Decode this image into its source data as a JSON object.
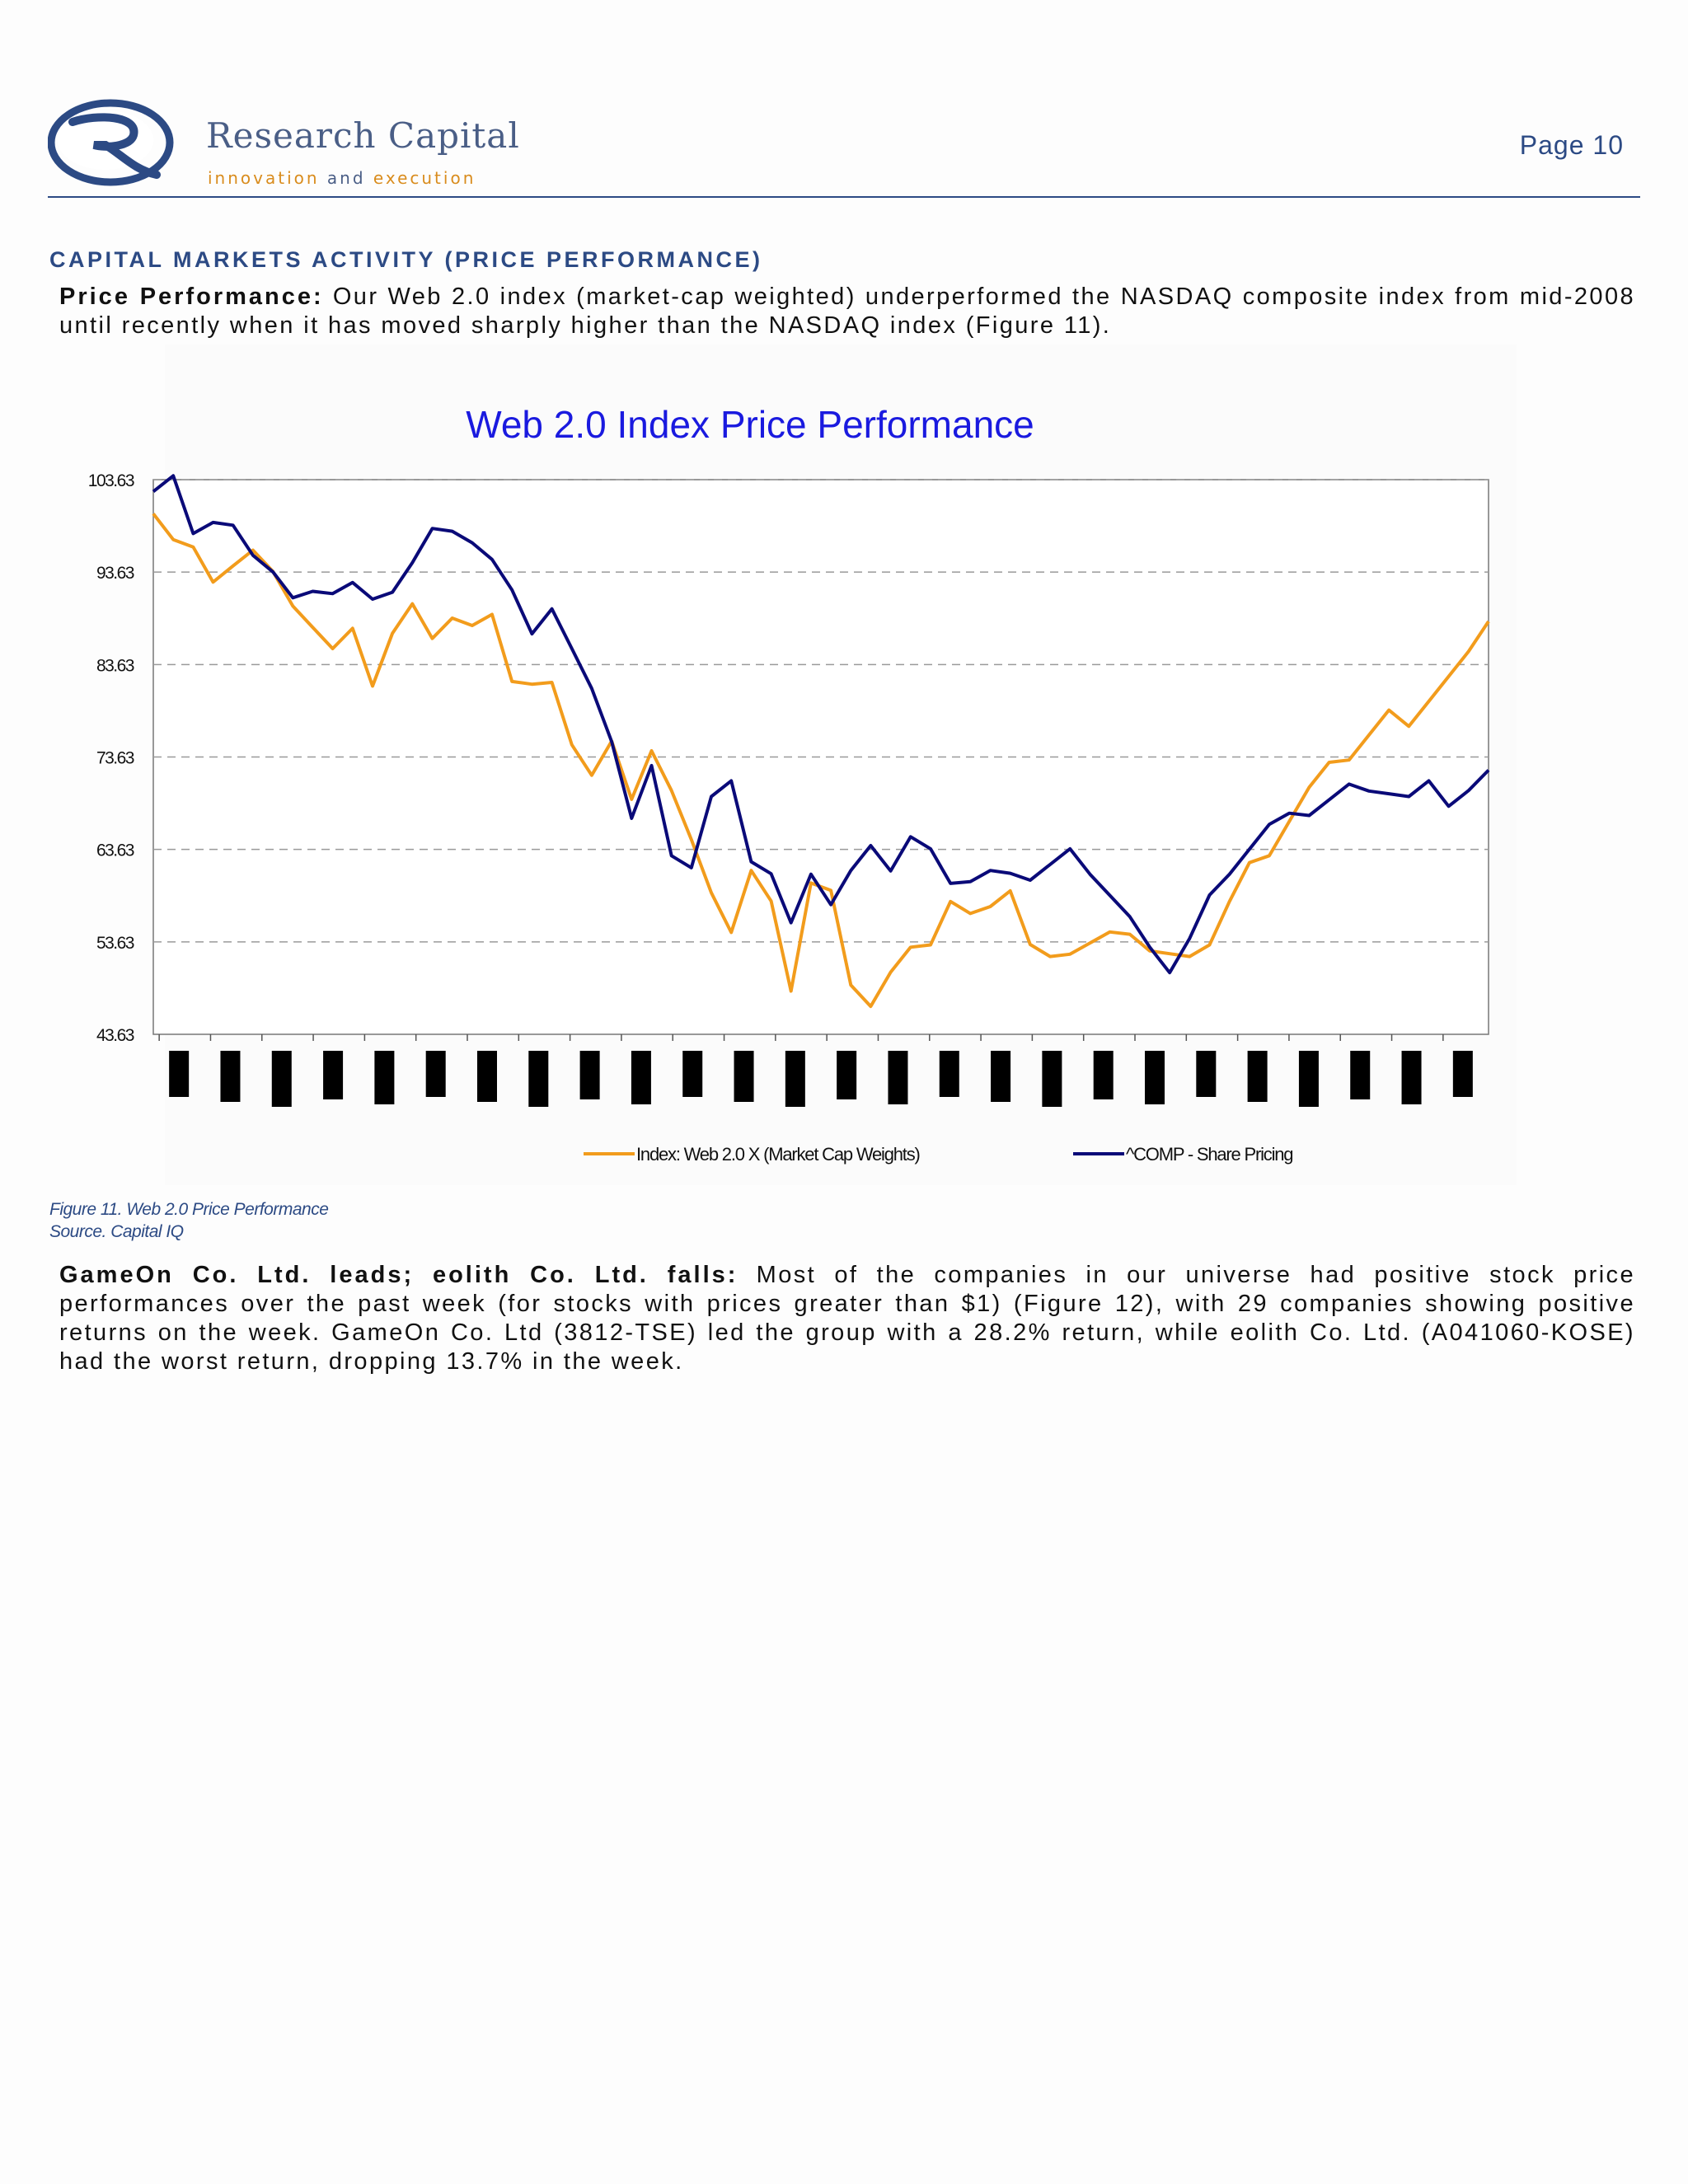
{
  "header": {
    "brand": "Research Capital",
    "tagline_a": "innovation ",
    "tagline_and": "and",
    "tagline_b": " execution",
    "page_label": "Page 10",
    "brand_color": "#4a5e86",
    "accent_color": "#d98c1d"
  },
  "section": {
    "title": "CAPITAL MARKETS ACTIVITY (PRICE PERFORMANCE)"
  },
  "para1": {
    "lead": "Price Performance:",
    "text": " Our Web 2.0 index (market-cap weighted) underperformed the NASDAQ composite index from mid-2008 until recently when it has moved sharply higher than the NASDAQ index (Figure 11)."
  },
  "figure": {
    "caption": "Figure 11. Web 2.0 Price Performance",
    "source": "Source. Capital IQ"
  },
  "para2": {
    "lead": "GameOn Co. Ltd. leads; eolith Co. Ltd. falls:",
    "text": " Most of the companies in our universe had positive stock price performances over the past week (for stocks with prices greater than $1) (Figure 12), with 29 companies showing positive returns on the week. GameOn Co. Ltd (3812-TSE) led the group with a 28.2% return, while eolith Co. Ltd. (A041060-KOSE) had the worst return, dropping 13.7% in the week."
  },
  "chart_data": {
    "type": "line",
    "title": "Web 2.0 Index Price Performance",
    "xlabel": "",
    "ylabel": "",
    "ylim": [
      43.63,
      103.63
    ],
    "y_ticks": [
      "103.63",
      "93.63",
      "83.63",
      "73.63",
      "63.63",
      "53.63",
      "43.63"
    ],
    "x_tick_labels": "redacted (26 black marks)",
    "x_tick_count": 26,
    "grid": "horizontal dashed",
    "legend_position": "bottom",
    "series": [
      {
        "name": "Index: Web 2.0 X (Market Cap Weights)",
        "color": "#f29c1c",
        "values": [
          101,
          97.5,
          96,
          91.5,
          95,
          96,
          93,
          91,
          88,
          85,
          86.5,
          82,
          87,
          89.5,
          87.5,
          89,
          87.5,
          88,
          82.5,
          81.5,
          81,
          76,
          72,
          75,
          68,
          75,
          70,
          64,
          60,
          55,
          61,
          57,
          49,
          60,
          58.5,
          50,
          47,
          50,
          52,
          54,
          58,
          56,
          58.5,
          59.5,
          53,
          51,
          53,
          53.5,
          54,
          55.5,
          53,
          52,
          51,
          54,
          58,
          61.5,
          64,
          67,
          70,
          72,
          74,
          76,
          78,
          78,
          80,
          82,
          84,
          89
        ]
      },
      {
        "name": "^COMP - Share Pricing",
        "color": "#0a0a78",
        "values": [
          102,
          103,
          98.5,
          99,
          98,
          96.5,
          94,
          90.5,
          90.5,
          92,
          92.5,
          90,
          92.5,
          95,
          98,
          97,
          97.5,
          95,
          91,
          88,
          90,
          85,
          80,
          76,
          67,
          72,
          64,
          62,
          69,
          70,
          63,
          61,
          55,
          62,
          58,
          61,
          63,
          62,
          65,
          63,
          61,
          60.5,
          61,
          60,
          61,
          62,
          63,
          62,
          59,
          56,
          52,
          51,
          54,
          58,
          62,
          64,
          66,
          66.5,
          68,
          69,
          70,
          71,
          70,
          69,
          70,
          69,
          70,
          71.5
        ]
      }
    ]
  }
}
